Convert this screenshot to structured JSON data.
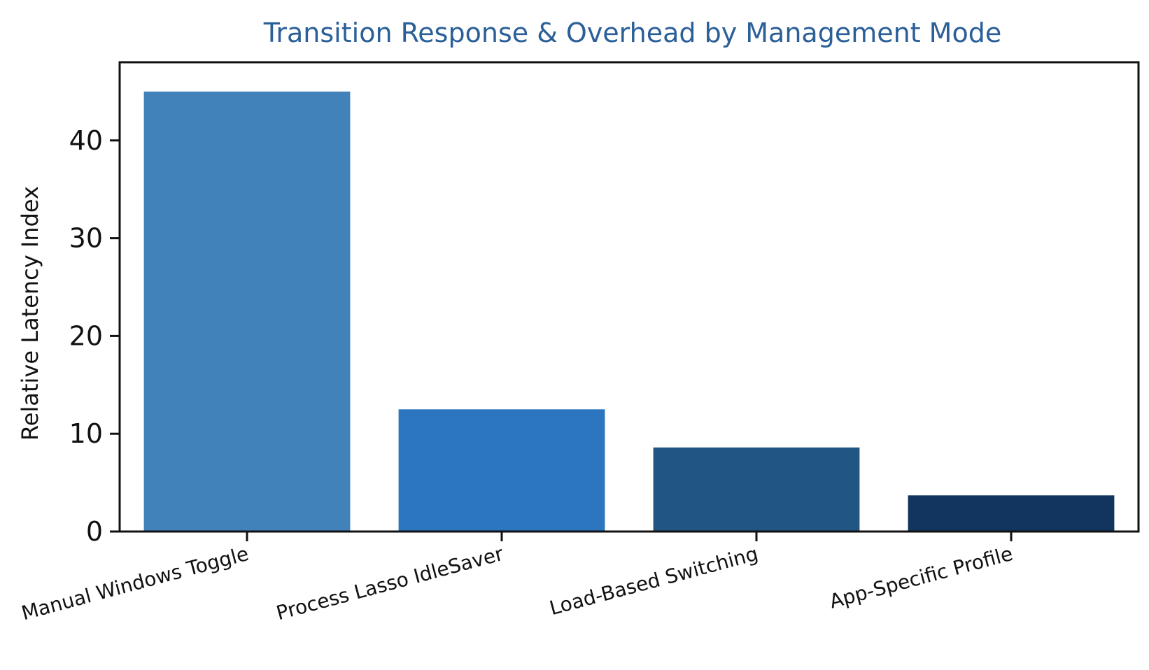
{
  "chart_data": {
    "type": "bar",
    "title": "Transition Response & Overhead by Management Mode",
    "xlabel": "",
    "ylabel": "Relative Latency Index",
    "categories": [
      "Manual Windows Toggle",
      "Process Lasso IdleSaver",
      "Load-Based Switching",
      "App-Specific Profile"
    ],
    "values": [
      45,
      12.5,
      8.6,
      3.7
    ],
    "bar_colors": [
      "#4282ba",
      "#2c76bf",
      "#215582",
      "#123560"
    ],
    "ylim": [
      0,
      48
    ],
    "yticks": [
      0,
      10,
      20,
      30,
      40
    ],
    "ytick_labels": [
      "0",
      "10",
      "20",
      "30",
      "40"
    ],
    "grid": false,
    "legend": "none",
    "title_color": "#2a5f98",
    "axis_color": "#111111"
  }
}
